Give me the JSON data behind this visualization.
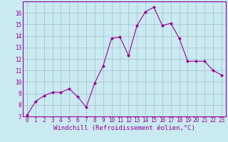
{
  "x": [
    0,
    1,
    2,
    3,
    4,
    5,
    6,
    7,
    8,
    9,
    10,
    11,
    12,
    13,
    14,
    15,
    16,
    17,
    18,
    19,
    20,
    21,
    22,
    23
  ],
  "y": [
    7.1,
    8.3,
    8.8,
    9.1,
    9.1,
    9.4,
    8.7,
    7.8,
    9.9,
    11.4,
    13.8,
    13.9,
    12.3,
    14.9,
    16.1,
    16.5,
    14.9,
    15.1,
    13.8,
    11.8,
    11.8,
    11.8,
    11.0,
    10.6
  ],
  "line_color": "#990099",
  "marker": "D",
  "marker_size": 2.0,
  "background_color": "#c8eaf0",
  "grid_color": "#aabbcc",
  "xlabel": "Windchill (Refroidissement éolien,°C)",
  "xlabel_color": "#990099",
  "ylim": [
    7,
    17
  ],
  "xlim": [
    -0.5,
    23.5
  ],
  "yticks": [
    7,
    8,
    9,
    10,
    11,
    12,
    13,
    14,
    15,
    16
  ],
  "xticks": [
    0,
    1,
    2,
    3,
    4,
    5,
    6,
    7,
    8,
    9,
    10,
    11,
    12,
    13,
    14,
    15,
    16,
    17,
    18,
    19,
    20,
    21,
    22,
    23
  ],
  "tick_label_color": "#990099",
  "tick_label_fontsize": 5.5,
  "xlabel_fontsize": 6.5,
  "spine_color": "#990099"
}
